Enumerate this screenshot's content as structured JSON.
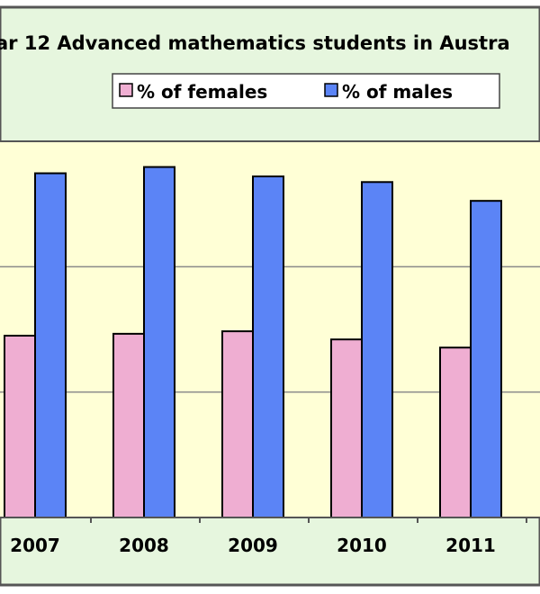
{
  "chart_data": {
    "type": "bar",
    "title": "ar 12 Advanced mathematics students in Austra",
    "xlabel": "",
    "ylabel": "",
    "categories": [
      "2007",
      "2008",
      "2009",
      "2010",
      "2011"
    ],
    "series": [
      {
        "name": "% of females",
        "color": "#efaed2",
        "values": [
          29,
          29.3,
          29.7,
          28.4,
          27.1
        ]
      },
      {
        "name": "% of males",
        "color": "#5b84f6",
        "values": [
          54.9,
          55.9,
          54.4,
          53.5,
          50.5
        ]
      }
    ],
    "ylim": [
      0,
      60
    ],
    "yticks": [
      0,
      20,
      40,
      60
    ],
    "grid": true,
    "legend_position": "top"
  },
  "colors": {
    "outer_background": "#e6f6de",
    "plot_background": "#ffffd6",
    "border": "#555555",
    "gridline": "#8a8a8a"
  }
}
